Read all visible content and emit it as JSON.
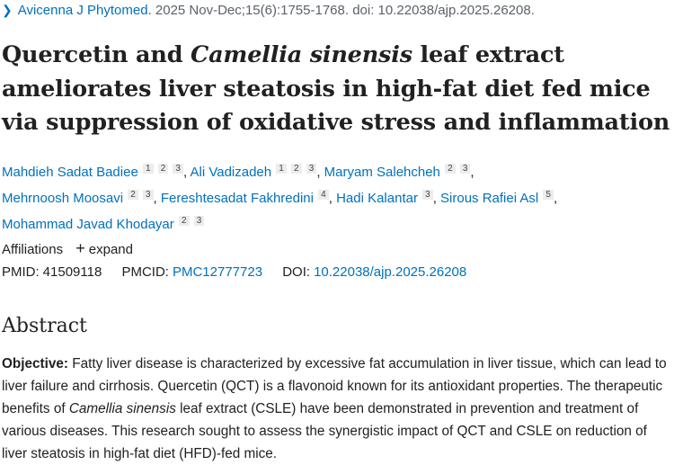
{
  "citation": {
    "journal": "Avicenna J Phytomed.",
    "details": "2025 Nov-Dec;15(6):1755-1768. doi: 10.22038/ajp.2025.26208."
  },
  "title": {
    "part1": "Quercetin and ",
    "italic": "Camellia sinensis",
    "part2": " leaf extract ameliorates liver steatosis in high-fat diet fed mice via suppression of oxidative stress and inflammation"
  },
  "authors": [
    {
      "name": "Mahdieh Sadat Badiee",
      "affs": [
        "1",
        "2",
        "3"
      ]
    },
    {
      "name": "Ali Vadizadeh",
      "affs": [
        "1",
        "2",
        "3"
      ]
    },
    {
      "name": "Maryam Salehcheh",
      "affs": [
        "2",
        "3"
      ]
    },
    {
      "name": "Mehrnoosh Moosavi",
      "affs": [
        "2",
        "3"
      ]
    },
    {
      "name": "Fereshtesadat Fakhredini",
      "affs": [
        "4"
      ]
    },
    {
      "name": "Hadi Kalantar",
      "affs": [
        "3"
      ]
    },
    {
      "name": "Sirous Rafiei Asl",
      "affs": [
        "5"
      ]
    },
    {
      "name": "Mohammad Javad Khodayar",
      "affs": [
        "2",
        "3"
      ]
    }
  ],
  "affiliations": {
    "label": "Affiliations",
    "expand": "expand"
  },
  "ids": {
    "pmid_label": "PMID:",
    "pmid": "41509118",
    "pmcid_label": "PMCID:",
    "pmcid": "PMC12777723",
    "doi_label": "DOI:",
    "doi": "10.22038/ajp.2025.26208"
  },
  "abstract": {
    "heading": "Abstract",
    "objective_label": "Objective:",
    "text1": " Fatty liver disease is characterized by excessive fat accumulation in liver tissue, which can lead to liver failure and cirrhosis. Quercetin (QCT) is a flavonoid known for its antioxidant properties. The therapeutic benefits of ",
    "italic": "Camellia sinensis",
    "text2": " leaf extract (CSLE) have been demonstrated in prevention and treatment of various diseases. This research sought to assess the synergistic impact of QCT and CSLE on reduction of liver steatosis in high-fat diet (HFD)-fed mice."
  }
}
